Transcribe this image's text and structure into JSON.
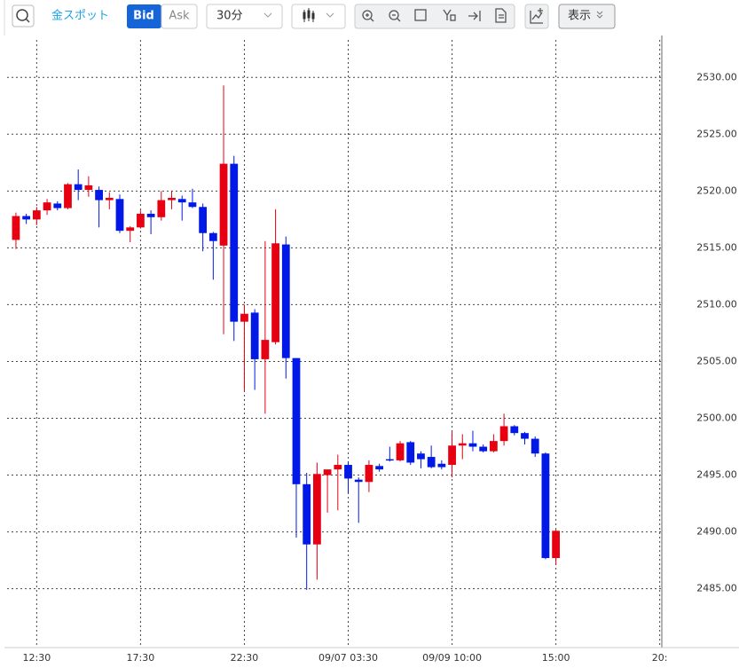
{
  "toolbar": {
    "symbol": "金スポット",
    "bid": "Bid",
    "ask": "Ask",
    "interval": "30分",
    "display": "表示"
  },
  "chart_data": {
    "type": "candlestick",
    "up_color": "#e60012",
    "down_color": "#0019e6",
    "grid": true,
    "open": [
      2515.7,
      2517.8,
      2517.5,
      2518.3,
      2518.9,
      2518.5,
      2520.6,
      2520.1,
      2520.1,
      2519.2,
      2519.3,
      2516.5,
      2516.8,
      2518.0,
      2517.7,
      2519.2,
      2519.3,
      2519.0,
      2518.6,
      2516.3,
      2515.2,
      2522.4,
      2508.5,
      2509.3,
      2505.2,
      2506.7,
      2515.3,
      2505.3,
      2494.2,
      2488.9,
      2495.0,
      2495.5,
      2495.9,
      2494.6,
      2494.4,
      2495.8,
      2496.4,
      2496.3,
      2497.9,
      2496.9,
      2496.6,
      2496.0,
      2495.9,
      2497.6,
      2497.8,
      2497.5,
      2497.1,
      2498.0,
      2499.3,
      2498.7,
      2498.2,
      2496.9,
      2487.7
    ],
    "high": [
      2518.1,
      2518.0,
      2518.6,
      2519.3,
      2519.1,
      2520.7,
      2521.9,
      2521.3,
      2520.4,
      2519.9,
      2519.7,
      2516.9,
      2518.3,
      2518.3,
      2520.0,
      2520.0,
      2519.6,
      2520.2,
      2518.9,
      2516.4,
      2529.3,
      2523.1,
      2510.0,
      2509.6,
      2515.6,
      2518.4,
      2516.0,
      2505.3,
      2495.2,
      2496.1,
      2495.4,
      2496.8,
      2496.2,
      2494.8,
      2496.3,
      2496.0,
      2497.5,
      2498.0,
      2498.0,
      2497.1,
      2497.6,
      2496.3,
      2498.8,
      2498.6,
      2498.9,
      2497.7,
      2498.6,
      2500.4,
      2499.4,
      2498.8,
      2498.4,
      2497.0,
      2490.2
    ],
    "low": [
      2514.9,
      2517.1,
      2517.0,
      2517.9,
      2518.3,
      2518.4,
      2519.2,
      2519.5,
      2516.8,
      2518.4,
      2516.3,
      2515.5,
      2516.7,
      2516.2,
      2517.4,
      2518.4,
      2517.4,
      2518.5,
      2514.7,
      2512.2,
      2507.4,
      2506.8,
      2502.4,
      2502.5,
      2500.4,
      2506.5,
      2503.5,
      2489.5,
      2484.9,
      2485.8,
      2491.7,
      2491.9,
      2493.4,
      2490.8,
      2493.5,
      2495.3,
      2496.2,
      2496.2,
      2495.9,
      2495.6,
      2495.6,
      2495.5,
      2494.8,
      2496.4,
      2497.1,
      2497.0,
      2497.0,
      2497.6,
      2498.5,
      2497.7,
      2496.6,
      2487.6,
      2487.1
    ],
    "close": [
      2517.8,
      2517.5,
      2518.3,
      2519.0,
      2518.5,
      2520.6,
      2520.1,
      2520.5,
      2519.2,
      2519.4,
      2516.5,
      2516.8,
      2518.0,
      2517.7,
      2519.2,
      2519.4,
      2519.0,
      2518.6,
      2516.3,
      2515.6,
      2522.4,
      2508.5,
      2509.2,
      2505.2,
      2506.9,
      2515.4,
      2505.3,
      2494.2,
      2488.9,
      2495.1,
      2495.5,
      2495.9,
      2494.7,
      2494.4,
      2495.9,
      2495.5,
      2496.3,
      2497.8,
      2496.1,
      2496.4,
      2495.7,
      2495.7,
      2497.6,
      2497.8,
      2497.5,
      2497.1,
      2498.0,
      2499.3,
      2498.7,
      2498.2,
      2496.9,
      2487.7,
      2490.1
    ],
    "xlim": [
      -0.85,
      62.2
    ],
    "xticks": [
      {
        "value": 2,
        "label": "12:30"
      },
      {
        "value": 12,
        "label": "17:30"
      },
      {
        "value": 22,
        "label": "22:30"
      },
      {
        "value": 32,
        "label": "09/07 03:30"
      },
      {
        "value": 42,
        "label": "09/09 10:00"
      },
      {
        "value": 52,
        "label": "15:00"
      },
      {
        "value": 62,
        "label": "20:"
      }
    ],
    "ylim": [
      2480.6,
      2533.3
    ],
    "yticks": [
      {
        "value": 2485,
        "label": "2485.00"
      },
      {
        "value": 2490,
        "label": "2490.00"
      },
      {
        "value": 2495,
        "label": "2495.00"
      },
      {
        "value": 2500,
        "label": "2500.00"
      },
      {
        "value": 2505,
        "label": "2505.00"
      },
      {
        "value": 2510,
        "label": "2510.00"
      },
      {
        "value": 2515,
        "label": "2515.00"
      },
      {
        "value": 2520,
        "label": "2520.00"
      },
      {
        "value": 2525,
        "label": "2525.00"
      },
      {
        "value": 2530,
        "label": "2530.00"
      }
    ]
  }
}
